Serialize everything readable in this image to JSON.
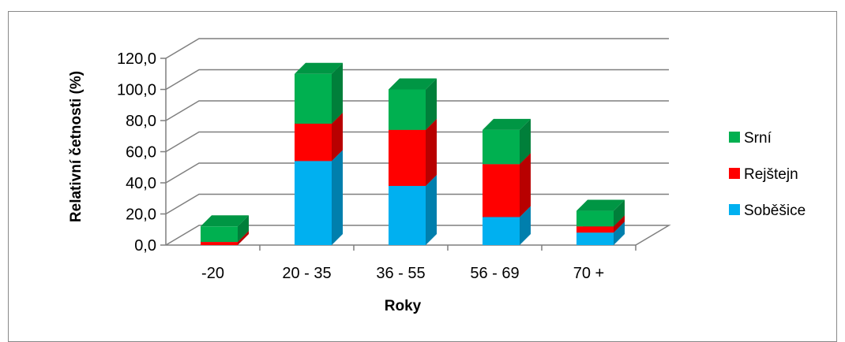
{
  "chart_data": {
    "type": "bar",
    "stacked": true,
    "style": "3d-column",
    "categories": [
      "-20",
      "20 - 35",
      "36 - 55",
      "56 - 69",
      "70 +"
    ],
    "series": [
      {
        "name": "Soběšice",
        "values": [
          0.0,
          54.0,
          38.0,
          18.0,
          8.0
        ]
      },
      {
        "name": "Rejštejn",
        "values": [
          2.0,
          24.0,
          36.0,
          34.0,
          4.0
        ]
      },
      {
        "name": "Srní",
        "values": [
          10.0,
          32.0,
          26.0,
          22.0,
          10.0
        ]
      }
    ],
    "xlabel": "Roky",
    "ylabel": "Relativní četnosti (%)",
    "ylim": [
      0,
      120
    ],
    "yticks": [
      "0,0",
      "20,0",
      "40,0",
      "60,0",
      "80,0",
      "100,0",
      "120,0"
    ],
    "grid": true,
    "legend_position": "right",
    "legend_order": [
      "Srní",
      "Rejštejn",
      "Soběšice"
    ]
  },
  "colors": {
    "Soběšice": "#00B0F0",
    "Rejštejn": "#FF0000",
    "Srní": "#00B050",
    "gridline": "#7f7f7f"
  }
}
